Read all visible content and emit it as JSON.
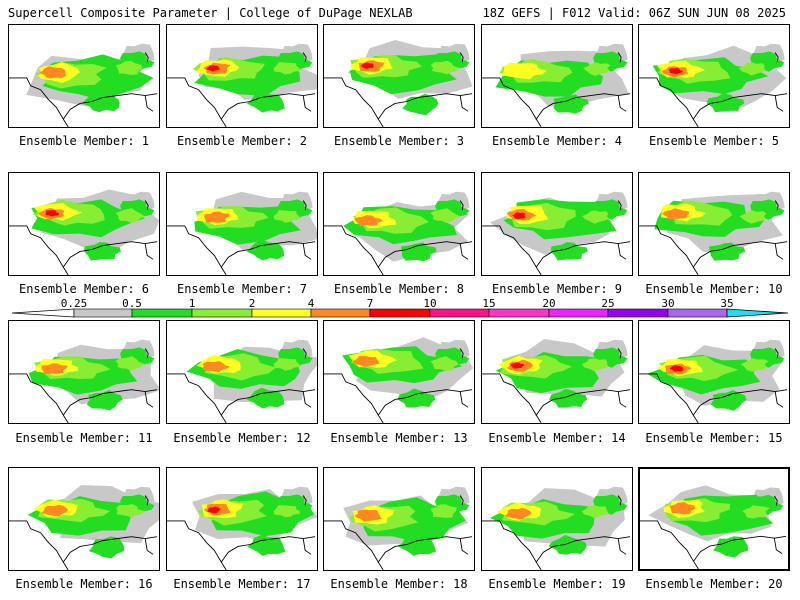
{
  "header": {
    "title": "Supercell Composite Parameter | College of DuPage NEXLAB",
    "run": "18Z GEFS | F012 Valid: 06Z SUN JUN 08 2025"
  },
  "colorbar": {
    "labels": [
      "0.25",
      "0.5",
      "1",
      "2",
      "4",
      "7",
      "10",
      "15",
      "20",
      "25",
      "30",
      "35"
    ],
    "colors": [
      "#ffffff",
      "#c8c8c8",
      "#22dd22",
      "#88ee33",
      "#ffff22",
      "#ff8822",
      "#ff0000",
      "#ff1188",
      "#ff33cc",
      "#ee22ff",
      "#9900ee",
      "#aa66ee",
      "#22ddee"
    ]
  },
  "colors": {
    "gray": "#c8c8c8",
    "green": "#22dd22",
    "lightgreen": "#88ee33",
    "yellow": "#ffff22",
    "orange": "#ff8822",
    "red": "#ff0000"
  },
  "members": [
    {
      "label": "Ensemble Member: 1",
      "peak": "orange"
    },
    {
      "label": "Ensemble Member: 2",
      "peak": "red"
    },
    {
      "label": "Ensemble Member: 3",
      "peak": "red"
    },
    {
      "label": "Ensemble Member: 4",
      "peak": "yellow"
    },
    {
      "label": "Ensemble Member: 5",
      "peak": "red"
    },
    {
      "label": "Ensemble Member: 6",
      "peak": "red"
    },
    {
      "label": "Ensemble Member: 7",
      "peak": "orange"
    },
    {
      "label": "Ensemble Member: 8",
      "peak": "orange"
    },
    {
      "label": "Ensemble Member: 9",
      "peak": "red"
    },
    {
      "label": "Ensemble Member: 10",
      "peak": "orange"
    },
    {
      "label": "Ensemble Member: 11",
      "peak": "orange"
    },
    {
      "label": "Ensemble Member: 12",
      "peak": "orange"
    },
    {
      "label": "Ensemble Member: 13",
      "peak": "orange"
    },
    {
      "label": "Ensemble Member: 14",
      "peak": "red"
    },
    {
      "label": "Ensemble Member: 15",
      "peak": "red"
    },
    {
      "label": "Ensemble Member: 16",
      "peak": "orange"
    },
    {
      "label": "Ensemble Member: 17",
      "peak": "red"
    },
    {
      "label": "Ensemble Member: 18",
      "peak": "orange"
    },
    {
      "label": "Ensemble Member: 19",
      "peak": "orange"
    },
    {
      "label": "Ensemble Member: 20",
      "peak": "orange"
    }
  ],
  "selected_member": 20
}
